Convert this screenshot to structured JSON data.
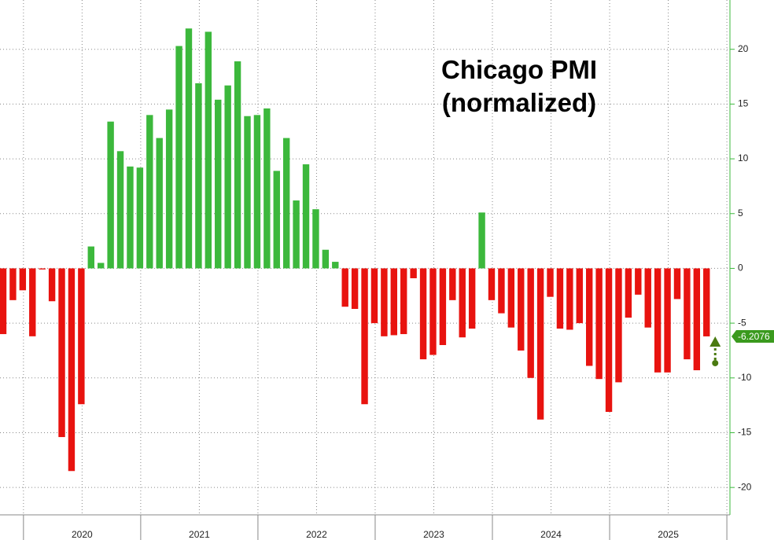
{
  "chart_data": {
    "type": "bar",
    "title": "Chicago PMI (normalized)",
    "categories": [
      null,
      null,
      null,
      null,
      null,
      null,
      null,
      null,
      null,
      null,
      null,
      null,
      null,
      null,
      null,
      null,
      null,
      null,
      null,
      null,
      null,
      null,
      null,
      null,
      null,
      null,
      null,
      null,
      null,
      null,
      null,
      null,
      null,
      null,
      null,
      null,
      null,
      null,
      null,
      null,
      null,
      null,
      null,
      null,
      null,
      null,
      null,
      null,
      null,
      null,
      null,
      null,
      null,
      null,
      null,
      null,
      null,
      null,
      null,
      null,
      null,
      null,
      null,
      null,
      null,
      null,
      null,
      null,
      null,
      null,
      null,
      null,
      null
    ],
    "values": [
      -6.0,
      -2.9,
      -2.0,
      -6.2,
      -0.1,
      -3.0,
      -15.4,
      -18.5,
      -12.4,
      2.0,
      0.5,
      13.4,
      10.7,
      9.3,
      9.2,
      14.0,
      11.9,
      14.5,
      20.3,
      21.9,
      16.9,
      21.6,
      15.4,
      16.7,
      18.9,
      13.9,
      14.0,
      14.6,
      8.9,
      11.9,
      6.2,
      9.5,
      5.4,
      1.7,
      0.6,
      -3.5,
      -3.7,
      -12.4,
      -5.0,
      -6.2,
      -6.1,
      -6.0,
      -0.9,
      -8.3,
      -7.9,
      -7.0,
      -2.9,
      -6.3,
      -5.5,
      5.1,
      -2.9,
      -4.1,
      -5.4,
      -7.5,
      -10.0,
      -13.8,
      -2.6,
      -5.5,
      -5.6,
      -5.0,
      -8.9,
      -10.1,
      -13.1,
      -10.4,
      -4.5,
      -2.4,
      -5.4,
      -9.5,
      -9.5,
      -2.8,
      -8.3,
      -9.3,
      -6.2076
    ],
    "positive_color": "#3cb83c",
    "negative_color": "#e8130f",
    "x_labels": [
      "2020",
      "2021",
      "2022",
      "2023",
      "2024",
      "2025"
    ],
    "ylim": [
      -22.5,
      24.5
    ],
    "yticks": [
      -20,
      -15,
      -10,
      -5,
      0,
      5,
      10,
      15,
      20
    ],
    "grid": true
  }
}
